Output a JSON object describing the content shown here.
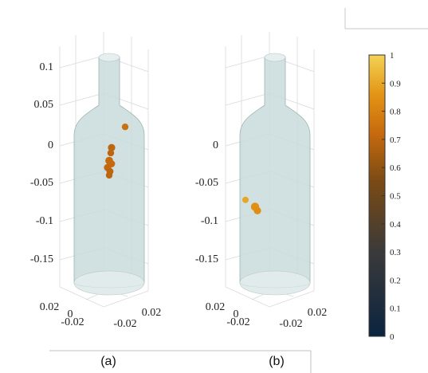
{
  "chart_data": [
    {
      "panel_label": "(a)",
      "type": "scatter",
      "z_tick_labels": [
        "0.1",
        "0.05",
        "0",
        "-0.05",
        "-0.1",
        "-0.15"
      ],
      "x_tick_labels": [
        "0.02",
        "0",
        "-0.02"
      ],
      "y_tick_labels": [
        "-0.02",
        "0.02"
      ],
      "zlim": [
        -0.19,
        0.12
      ],
      "grid": true,
      "points": [
        {
          "z": 0.022,
          "value": 0.74
        },
        {
          "z": -0.005,
          "value": 0.7
        },
        {
          "z": -0.012,
          "value": 0.7
        },
        {
          "z": -0.022,
          "value": 0.72
        },
        {
          "z": -0.026,
          "value": 0.72
        },
        {
          "z": -0.031,
          "value": 0.71
        },
        {
          "z": -0.036,
          "value": 0.7
        },
        {
          "z": -0.041,
          "value": 0.7
        }
      ]
    },
    {
      "panel_label": "(b)",
      "type": "scatter",
      "z_tick_labels": [
        "0",
        "-0.05",
        "-0.1",
        "-0.15"
      ],
      "x_tick_labels": [
        "0.02",
        "0",
        "-0.02"
      ],
      "y_tick_labels": [
        "-0.02",
        "0.02"
      ],
      "zlim": [
        -0.19,
        0.12
      ],
      "grid": true,
      "points": [
        {
          "z": -0.073,
          "value": 0.9
        },
        {
          "z": -0.082,
          "value": 0.85
        },
        {
          "z": -0.087,
          "value": 0.84
        }
      ]
    }
  ],
  "colorbar": {
    "tick_labels": [
      "1",
      "0.9",
      "0.8",
      "0.7",
      "0.6",
      "0.5",
      "0.4",
      "0.3",
      "0.2",
      "0.1",
      "0"
    ],
    "range": [
      0,
      1
    ],
    "colors": [
      "#0b2440",
      "#3a3a3a",
      "#7a4a14",
      "#c66a0e",
      "#e39414",
      "#f3d356"
    ]
  }
}
